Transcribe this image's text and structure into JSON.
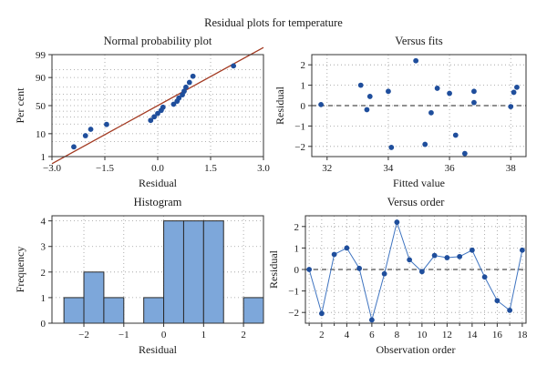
{
  "figure": {
    "title": "Residual plots for temperature"
  },
  "chart_data": [
    {
      "id": "normal",
      "type": "scatter",
      "title": "Normal probability plot",
      "xlabel": "Residual",
      "ylabel": "Per cent",
      "xlim": [
        -3.0,
        3.0
      ],
      "xticks": [
        -3.0,
        -1.5,
        0.0,
        1.5,
        3.0
      ],
      "xtick_labels": [
        "−3.0",
        "−1.5",
        "0.0",
        "1.5",
        "3.0"
      ],
      "y_scale": "normal-probability",
      "yticks": [
        1,
        10,
        50,
        90,
        99
      ],
      "yticks_grid": [
        1,
        5,
        10,
        20,
        30,
        40,
        50,
        60,
        70,
        80,
        90,
        95,
        99
      ],
      "ylim": [
        1,
        99
      ],
      "grid": true,
      "point_color": "#1f4e9c",
      "line_color": "#a33a22",
      "points": [
        {
          "x": -2.38,
          "y": 3.0
        },
        {
          "x": -2.05,
          "y": 8.5
        },
        {
          "x": -1.9,
          "y": 14.0
        },
        {
          "x": -1.45,
          "y": 19.5
        },
        {
          "x": -0.2,
          "y": 25.0
        },
        {
          "x": -0.1,
          "y": 30.5
        },
        {
          "x": 0.0,
          "y": 36.0
        },
        {
          "x": 0.1,
          "y": 41.5
        },
        {
          "x": 0.15,
          "y": 47.0
        },
        {
          "x": 0.45,
          "y": 52.5
        },
        {
          "x": 0.55,
          "y": 58.0
        },
        {
          "x": 0.6,
          "y": 63.5
        },
        {
          "x": 0.7,
          "y": 69.0
        },
        {
          "x": 0.75,
          "y": 74.5
        },
        {
          "x": 0.8,
          "y": 80.0
        },
        {
          "x": 0.9,
          "y": 85.5
        },
        {
          "x": 1.0,
          "y": 91.0
        },
        {
          "x": 2.15,
          "y": 96.5
        }
      ],
      "fit_line": {
        "x": [
          -3.0,
          3.0
        ],
        "y": [
          0.4,
          99.6
        ]
      }
    },
    {
      "id": "fits",
      "type": "scatter",
      "title": "Versus fits",
      "xlabel": "Fitted value",
      "ylabel": "Residual",
      "xlim": [
        31.5,
        38.5
      ],
      "ylim": [
        -2.5,
        2.5
      ],
      "xticks": [
        32,
        34,
        36,
        38
      ],
      "xtick_labels": [
        "32",
        "34",
        "36",
        "38"
      ],
      "yticks": [
        -2,
        -1,
        0,
        1,
        2
      ],
      "ytick_labels": [
        "−2",
        "−1",
        "0",
        "1",
        "2"
      ],
      "grid": true,
      "zero_line": true,
      "point_color": "#1f4e9c",
      "points": [
        {
          "x": 31.8,
          "y": 0.05
        },
        {
          "x": 33.1,
          "y": 1.0
        },
        {
          "x": 33.3,
          "y": -0.2
        },
        {
          "x": 33.4,
          "y": 0.45
        },
        {
          "x": 34.0,
          "y": 0.7
        },
        {
          "x": 34.1,
          "y": -2.05
        },
        {
          "x": 34.9,
          "y": 2.2
        },
        {
          "x": 35.2,
          "y": -1.9
        },
        {
          "x": 35.4,
          "y": -0.35
        },
        {
          "x": 35.6,
          "y": 0.85
        },
        {
          "x": 36.0,
          "y": 0.6
        },
        {
          "x": 36.2,
          "y": -1.45
        },
        {
          "x": 36.5,
          "y": -2.35
        },
        {
          "x": 36.8,
          "y": 0.7
        },
        {
          "x": 36.8,
          "y": 0.15
        },
        {
          "x": 38.0,
          "y": -0.05
        },
        {
          "x": 38.1,
          "y": 0.65
        },
        {
          "x": 38.2,
          "y": 0.9
        }
      ]
    },
    {
      "id": "histogram",
      "type": "bar",
      "title": "Histogram",
      "xlabel": "Residual",
      "ylabel": "Frequency",
      "xlim": [
        -2.8,
        2.5
      ],
      "ylim": [
        0,
        4.2
      ],
      "xticks": [
        -2,
        -1,
        0,
        1,
        2
      ],
      "xtick_labels": [
        "−2",
        "−1",
        "0",
        "1",
        "2"
      ],
      "yticks": [
        0,
        1,
        2,
        3,
        4
      ],
      "ytick_labels": [
        "0",
        "1",
        "2",
        "3",
        "4"
      ],
      "grid": true,
      "bar_color": "#7da7da",
      "bins": [
        {
          "x0": -2.5,
          "x1": -2.0,
          "count": 1
        },
        {
          "x0": -2.0,
          "x1": -1.5,
          "count": 2
        },
        {
          "x0": -1.5,
          "x1": -1.0,
          "count": 1
        },
        {
          "x0": -1.0,
          "x1": -0.5,
          "count": 0
        },
        {
          "x0": -0.5,
          "x1": 0.0,
          "count": 1
        },
        {
          "x0": 0.0,
          "x1": 0.5,
          "count": 4
        },
        {
          "x0": 0.5,
          "x1": 1.0,
          "count": 4
        },
        {
          "x0": 1.0,
          "x1": 1.5,
          "count": 4
        },
        {
          "x0": 1.5,
          "x1": 2.0,
          "count": 0
        },
        {
          "x0": 2.0,
          "x1": 2.5,
          "count": 1
        }
      ]
    },
    {
      "id": "order",
      "type": "line",
      "title": "Versus order",
      "xlabel": "Observation order",
      "ylabel": "Residual",
      "xlim": [
        0.7,
        18.3
      ],
      "ylim": [
        -2.5,
        2.5
      ],
      "xticks": [
        2,
        4,
        6,
        8,
        10,
        12,
        14,
        16,
        18
      ],
      "xtick_labels": [
        "2",
        "4",
        "6",
        "8",
        "10",
        "12",
        "14",
        "16",
        "18"
      ],
      "xticks_minor": [
        1,
        3,
        5,
        7,
        9,
        11,
        13,
        15,
        17
      ],
      "yticks": [
        -2,
        -1,
        0,
        1,
        2
      ],
      "ytick_labels": [
        "−2",
        "−1",
        "0",
        "1",
        "2"
      ],
      "grid": true,
      "zero_line": true,
      "point_color": "#1f4e9c",
      "line_color": "#3f74c0",
      "x": [
        1,
        2,
        3,
        4,
        5,
        6,
        7,
        8,
        9,
        10,
        11,
        12,
        13,
        14,
        15,
        16,
        17,
        18
      ],
      "y": [
        0.0,
        -2.05,
        0.7,
        1.0,
        0.05,
        -2.35,
        -0.2,
        2.2,
        0.45,
        -0.1,
        0.65,
        0.55,
        0.6,
        0.9,
        -0.35,
        -1.45,
        -1.9,
        0.9
      ]
    }
  ]
}
